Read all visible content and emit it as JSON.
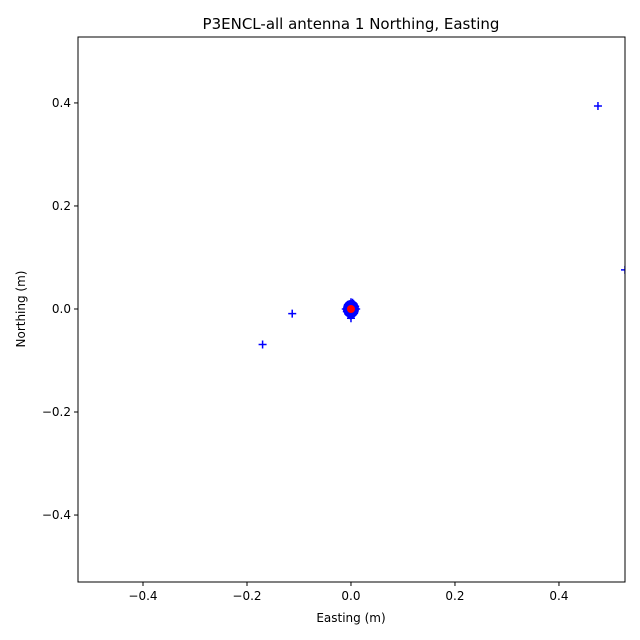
{
  "chart_data": {
    "type": "scatter",
    "title": "P3ENCL-all antenna 1 Northing, Easting",
    "xlabel": "Easting (m)",
    "ylabel": "Northing (m)",
    "xlim": [
      -0.525,
      0.527
    ],
    "ylim": [
      -0.53,
      0.528
    ],
    "grid": false,
    "xticks": [
      -0.4,
      -0.2,
      0.0,
      0.2,
      0.4
    ],
    "xtick_labels": [
      "−0.4",
      "−0.2",
      "0.0",
      "0.2",
      "0.4"
    ],
    "yticks": [
      -0.4,
      -0.2,
      0.0,
      0.2,
      0.4
    ],
    "ytick_labels": [
      "−0.4",
      "−0.2",
      "0.0",
      "0.2",
      "0.4"
    ],
    "series": [
      {
        "marker": "plus",
        "color": "#0000ff",
        "x": [
          0.475,
          0.527,
          -0.113,
          -0.17,
          0.0,
          0.008,
          -0.008,
          0.005,
          -0.005,
          0.0,
          0.0,
          0.006,
          -0.006,
          0.01,
          -0.01,
          0.003,
          -0.003,
          0.0
        ],
        "y": [
          0.394,
          0.076,
          -0.009,
          -0.069,
          0.0,
          0.005,
          -0.005,
          0.01,
          -0.01,
          0.013,
          -0.013,
          -0.008,
          0.008,
          0.0,
          0.0,
          0.012,
          -0.012,
          -0.018
        ]
      },
      {
        "marker": "circle",
        "color": "#ff0000",
        "x": [
          0.0
        ],
        "y": [
          0.0
        ]
      }
    ]
  }
}
